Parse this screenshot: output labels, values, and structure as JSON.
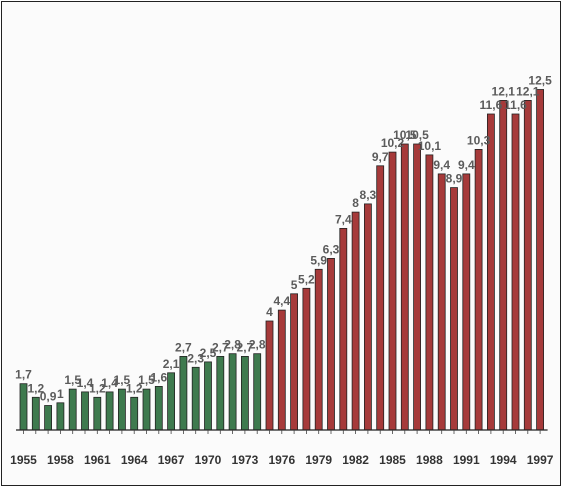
{
  "chart_data": {
    "type": "bar",
    "title": "",
    "xlabel": "",
    "ylabel": "",
    "ylim": [
      0,
      14.5
    ],
    "categories": [
      "1955",
      "1956",
      "1957",
      "1958",
      "1959",
      "1960",
      "1961",
      "1962",
      "1963",
      "1964",
      "1965",
      "1966",
      "1967",
      "1968",
      "1969",
      "1970",
      "1971",
      "1972",
      "1973",
      "1974",
      "1975",
      "1976",
      "1977",
      "1978",
      "1979",
      "1980",
      "1981",
      "1982",
      "1983",
      "1984",
      "1985",
      "1986",
      "1987",
      "1988",
      "1989",
      "1990",
      "1991",
      "1992",
      "1993",
      "1994",
      "1995",
      "1996",
      "1997"
    ],
    "values": [
      1.7,
      1.2,
      0.9,
      1,
      1.5,
      1.4,
      1.2,
      1.4,
      1.5,
      1.2,
      1.5,
      1.6,
      2.1,
      2.7,
      2.3,
      2.5,
      2.7,
      2.8,
      2.7,
      2.8,
      4,
      4.4,
      5,
      5.2,
      5.9,
      6.3,
      7.4,
      8,
      8.3,
      9.7,
      10.2,
      10.5,
      10.5,
      10.1,
      9.4,
      8.9,
      9.4,
      10.3,
      11.6,
      12.1,
      11.6,
      12.1,
      12.5
    ],
    "value_labels": [
      "1,7",
      "1,2",
      "0,9",
      "1",
      "1,5",
      "1,4",
      "1,2",
      "1,4",
      "1,5",
      "1,2",
      "1,5",
      "1,6",
      "2,1",
      "2,7",
      "2,3",
      "2,5",
      "2,7",
      "2,8",
      "2,7",
      "2,8",
      "4",
      "4,4",
      "5",
      "5,2",
      "5,9",
      "6,3",
      "7,4",
      "8",
      "8,3",
      "9,7",
      "10,2",
      "10,5",
      "10,5",
      "10,1",
      "9,4",
      "8,9",
      "9,4",
      "10,3",
      "11,6",
      "12,1",
      "11,6",
      "12,1",
      "12,5"
    ],
    "x_tick_labels": [
      "1955",
      "1958",
      "1961",
      "1964",
      "1967",
      "1970",
      "1973",
      "1976",
      "1979",
      "1982",
      "1985",
      "1988",
      "1991",
      "1994",
      "1997"
    ],
    "grid": false,
    "legend": "none",
    "colors": {
      "period_1": "#3e7a4e",
      "period_2": "#a63a3a",
      "outline": "#222222"
    },
    "color_split_after": "1974"
  }
}
